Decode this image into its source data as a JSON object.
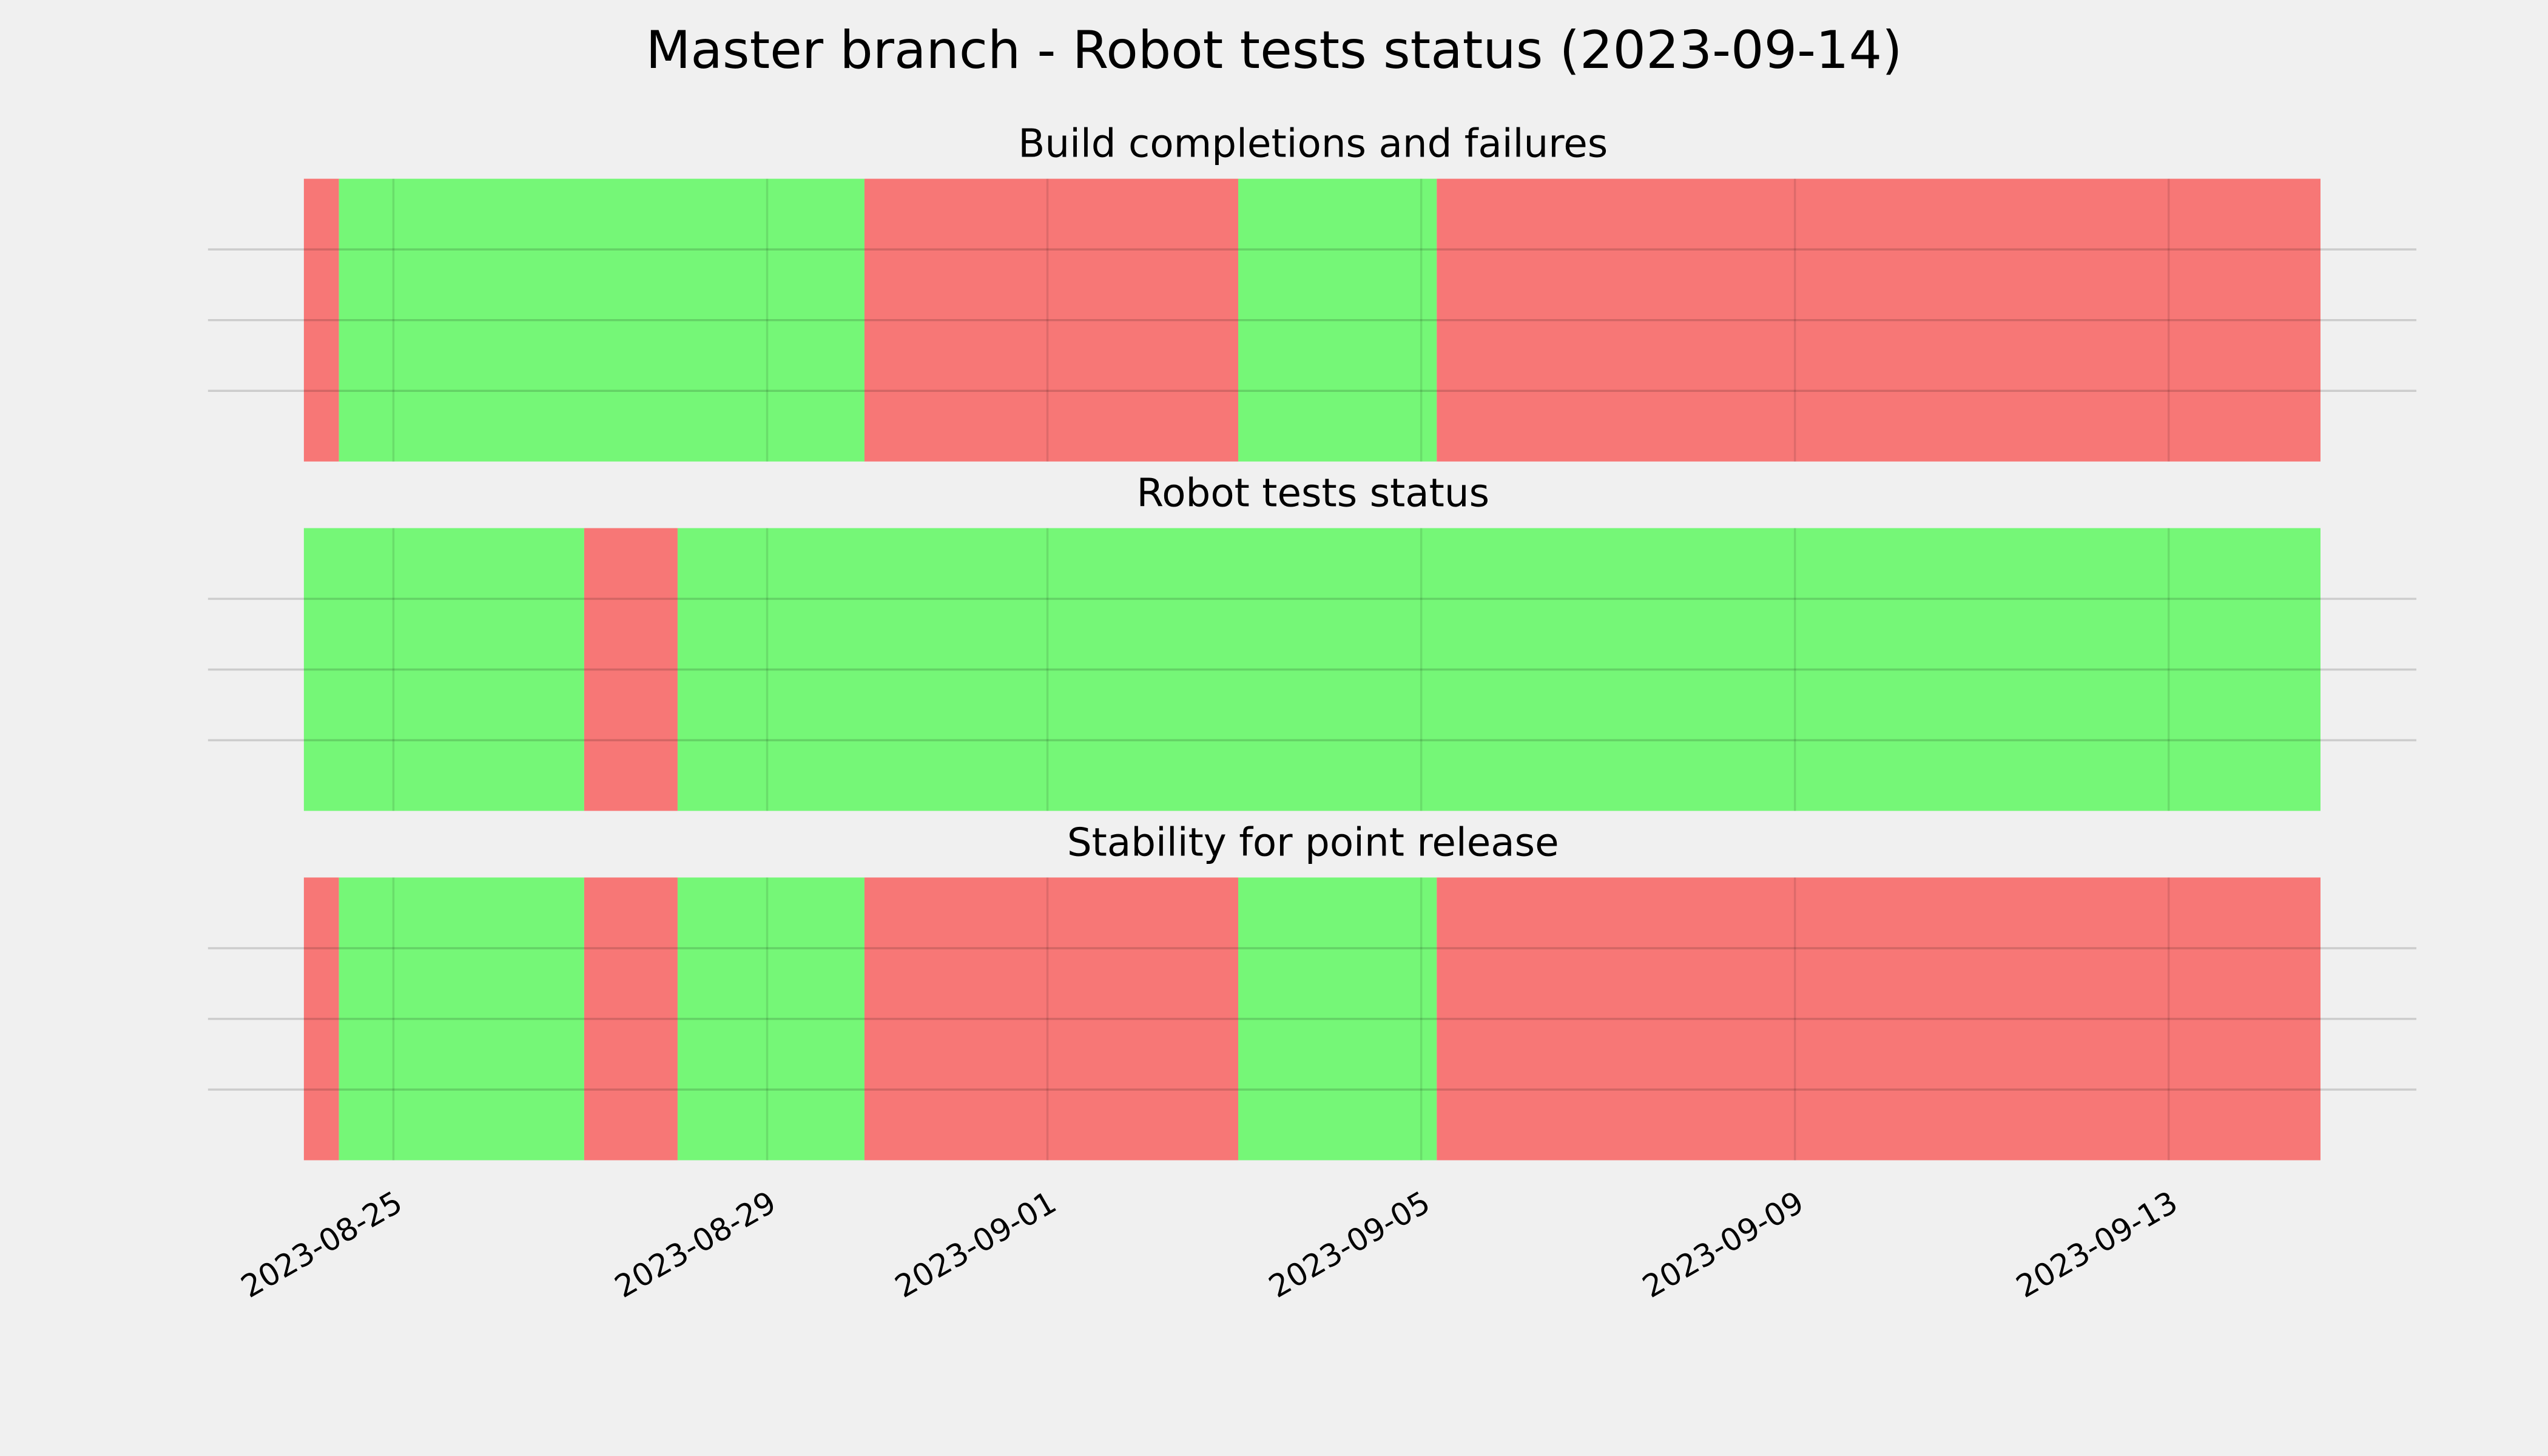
{
  "title": "Master branch - Robot tests status (2023-09-14)",
  "chart_data": [
    {
      "type": "timeline",
      "title": "Build completions and failures",
      "xlim": [
        "2023-08-24T01:00",
        "2023-09-14T15:00"
      ],
      "xticks": [
        "2023-08-25",
        "2023-08-29",
        "2023-09-01",
        "2023-09-05",
        "2023-09-09",
        "2023-09-13"
      ],
      "ylim": [
        0,
        1
      ],
      "yticks": [
        0.25,
        0.5,
        0.75
      ],
      "grid": true,
      "show_xtick_labels": false,
      "segments": [
        {
          "start": "2023-08-24T01:00",
          "end": "2023-08-24T10:00",
          "color": "#f77776"
        },
        {
          "start": "2023-08-24T10:00",
          "end": "2023-08-30T01:00",
          "color": "#75f777"
        },
        {
          "start": "2023-08-30T01:00",
          "end": "2023-09-03T01:00",
          "color": "#f77776"
        },
        {
          "start": "2023-09-03T01:00",
          "end": "2023-09-05T04:00",
          "color": "#75f777"
        },
        {
          "start": "2023-09-05T04:00",
          "end": "2023-09-14T15:00",
          "color": "#f77776"
        }
      ]
    },
    {
      "type": "timeline",
      "title": "Robot tests status",
      "xlim": [
        "2023-08-24T01:00",
        "2023-09-14T15:00"
      ],
      "xticks": [
        "2023-08-25",
        "2023-08-29",
        "2023-09-01",
        "2023-09-05",
        "2023-09-09",
        "2023-09-13"
      ],
      "ylim": [
        0,
        1
      ],
      "yticks": [
        0.25,
        0.5,
        0.75
      ],
      "grid": true,
      "show_xtick_labels": false,
      "segments": [
        {
          "start": "2023-08-24T01:00",
          "end": "2023-08-27T01:00",
          "color": "#75f777"
        },
        {
          "start": "2023-08-27T01:00",
          "end": "2023-08-28T01:00",
          "color": "#f77776"
        },
        {
          "start": "2023-08-28T01:00",
          "end": "2023-09-14T15:00",
          "color": "#75f777"
        }
      ]
    },
    {
      "type": "timeline",
      "title": "Stability for point release",
      "xlim": [
        "2023-08-24T01:00",
        "2023-09-14T15:00"
      ],
      "xticks": [
        "2023-08-25",
        "2023-08-29",
        "2023-09-01",
        "2023-09-05",
        "2023-09-09",
        "2023-09-13"
      ],
      "ylim": [
        0,
        1
      ],
      "yticks": [
        0.25,
        0.5,
        0.75
      ],
      "grid": true,
      "show_xtick_labels": true,
      "segments": [
        {
          "start": "2023-08-24T01:00",
          "end": "2023-08-24T10:00",
          "color": "#f77776"
        },
        {
          "start": "2023-08-24T10:00",
          "end": "2023-08-27T01:00",
          "color": "#75f777"
        },
        {
          "start": "2023-08-27T01:00",
          "end": "2023-08-28T01:00",
          "color": "#f77776"
        },
        {
          "start": "2023-08-28T01:00",
          "end": "2023-08-30T01:00",
          "color": "#75f777"
        },
        {
          "start": "2023-08-30T01:00",
          "end": "2023-09-03T01:00",
          "color": "#f77776"
        },
        {
          "start": "2023-09-03T01:00",
          "end": "2023-09-05T04:00",
          "color": "#75f777"
        },
        {
          "start": "2023-09-05T04:00",
          "end": "2023-09-14T15:00",
          "color": "#f77776"
        }
      ]
    }
  ]
}
